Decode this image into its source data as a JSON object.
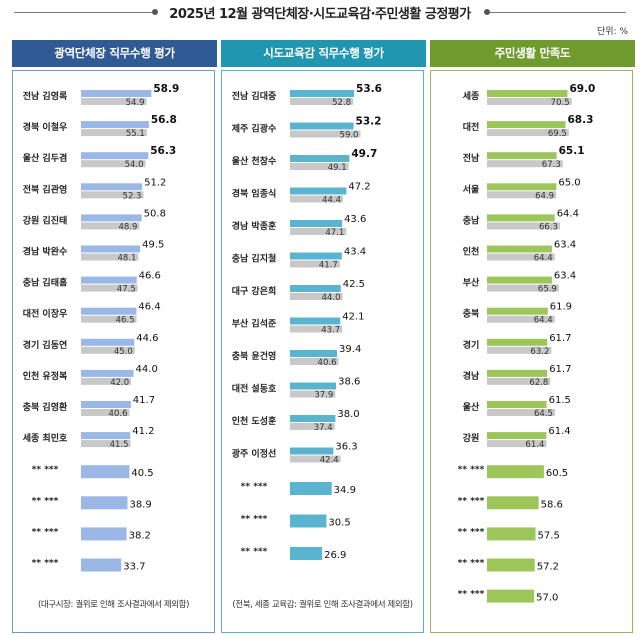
{
  "title": "2025년 12월 광역단체장·시도교육감·주민생활 긍정평가",
  "unit": "단위: %",
  "colors": {
    "header_blue": "#2f5a94",
    "header_teal": "#2196b0",
    "header_green": "#6f9a2e",
    "bar_blue": "#9ab7e6",
    "bar_teal": "#5ab4cf",
    "bar_green": "#9cc65a",
    "bar_gray": "#c8c8c8",
    "border_blue": "#6f95c9",
    "border_teal": "#5bb3cb",
    "border_green": "#95b85a"
  },
  "chart_data": [
    {
      "type": "bar",
      "title": "광역단체장 직무수행 평가",
      "note": "(대구시장: 궐위로 인해  조사결과에서 제외함)",
      "categories": [
        "전남 김영록",
        "경북 이철우",
        "울산 김두겸",
        "전북 김관영",
        "강원 김진태",
        "경남 박완수",
        "충남 김태흠",
        "대전 이장우",
        "경기 김동연",
        "인천 유정복",
        "충북 김영환",
        "세종 최민호",
        "** ***",
        "** ***",
        "** ***",
        "** ***"
      ],
      "series": [
        {
          "values": [
            58.9,
            56.8,
            56.3,
            51.2,
            50.8,
            49.5,
            46.6,
            46.4,
            44.6,
            44.0,
            41.7,
            41.2,
            40.5,
            38.9,
            38.2,
            33.7
          ]
        },
        {
          "values": [
            54.9,
            55.1,
            54.0,
            52.3,
            48.9,
            48.1,
            47.5,
            46.5,
            45.0,
            42.0,
            40.6,
            41.5,
            null,
            null,
            null,
            null
          ]
        }
      ],
      "bold_top": 3
    },
    {
      "type": "bar",
      "title": "시도교육감 직무수행 평가",
      "note": "(전북, 세종 교육감: 궐위로 인해  조사결과에서 제외함)",
      "categories": [
        "전남 김대중",
        "제주 김광수",
        "울산 천창수",
        "경북 임종식",
        "경남 박종훈",
        "충남 김지철",
        "대구 강은희",
        "부산 김석준",
        "충북 윤건영",
        "대전 설동호",
        "인천 도성훈",
        "광주 이정선",
        "** ***",
        "** ***",
        "** ***"
      ],
      "series": [
        {
          "values": [
            53.6,
            53.2,
            49.7,
            47.2,
            43.6,
            43.4,
            42.5,
            42.1,
            39.4,
            38.6,
            38.0,
            36.3,
            34.9,
            30.5,
            26.9
          ]
        },
        {
          "values": [
            52.8,
            59.0,
            49.1,
            44.4,
            47.1,
            41.7,
            44.0,
            43.7,
            40.6,
            37.9,
            37.4,
            42.4,
            null,
            null,
            null
          ]
        }
      ],
      "bold_top": 3
    },
    {
      "type": "bar",
      "title": "주민생활 만족도",
      "note": "",
      "categories": [
        "세종",
        "대전",
        "전남",
        "서울",
        "충남",
        "인천",
        "부산",
        "충북",
        "경기",
        "경남",
        "울산",
        "강원",
        "** ***",
        "** ***",
        "** ***",
        "** ***",
        "** ***"
      ],
      "series": [
        {
          "values": [
            69.0,
            68.3,
            65.1,
            65.0,
            64.4,
            63.4,
            63.4,
            61.9,
            61.7,
            61.7,
            61.5,
            61.4,
            60.5,
            58.6,
            57.5,
            57.2,
            57.0
          ]
        },
        {
          "values": [
            70.5,
            69.5,
            67.3,
            64.9,
            66.3,
            64.4,
            65.9,
            64.4,
            63.2,
            62.8,
            64.5,
            61.4,
            null,
            null,
            null,
            null,
            null
          ]
        }
      ],
      "bold_top": 3
    }
  ]
}
